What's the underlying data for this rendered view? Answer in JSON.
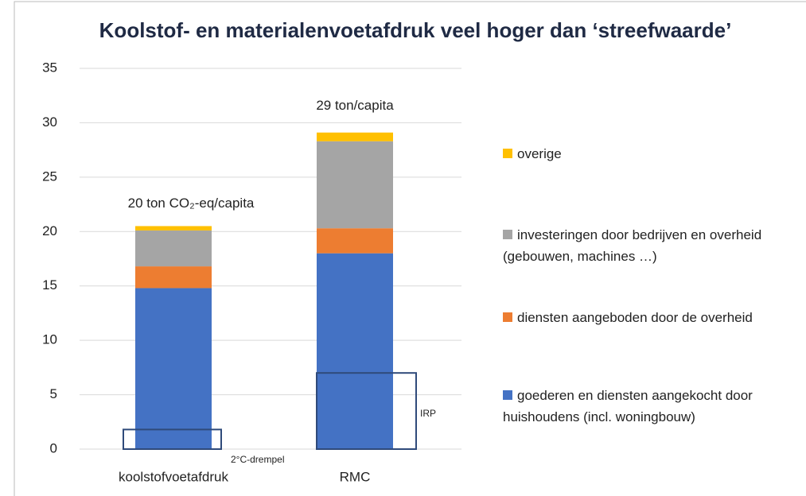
{
  "chart_data": {
    "type": "stacked_bar",
    "title": "Koolstof- en materialenvoetafdruk veel hoger dan ‘streefwaarde’",
    "categories": [
      "koolstofvoetafdruk",
      "RMC"
    ],
    "series": [
      {
        "name": "goederen en diensten aangekocht door huishoudens (incl. woningbouw)",
        "color": "#4472c4",
        "values": [
          14.8,
          18.0
        ]
      },
      {
        "name": "diensten aangeboden door de overheid",
        "color": "#ed7d31",
        "values": [
          2.0,
          2.3
        ]
      },
      {
        "name": "investeringen door bedrijven en overheid (gebouwen, machines …)",
        "color": "#a5a5a5",
        "values": [
          3.3,
          8.0
        ]
      },
      {
        "name": "overige",
        "color": "#ffc000",
        "values": [
          0.4,
          0.8
        ]
      }
    ],
    "total_labels": [
      "20 ton CO₂-eq/capita",
      "29 ton/capita"
    ],
    "thresholds": [
      {
        "label": "2°C-drempel",
        "value": 1.8
      },
      {
        "label": "IRP",
        "value": 7.0
      }
    ],
    "ylim": [
      0,
      35
    ],
    "yticks": [
      0,
      5,
      10,
      15,
      20,
      25,
      30,
      35
    ],
    "grid": true
  }
}
